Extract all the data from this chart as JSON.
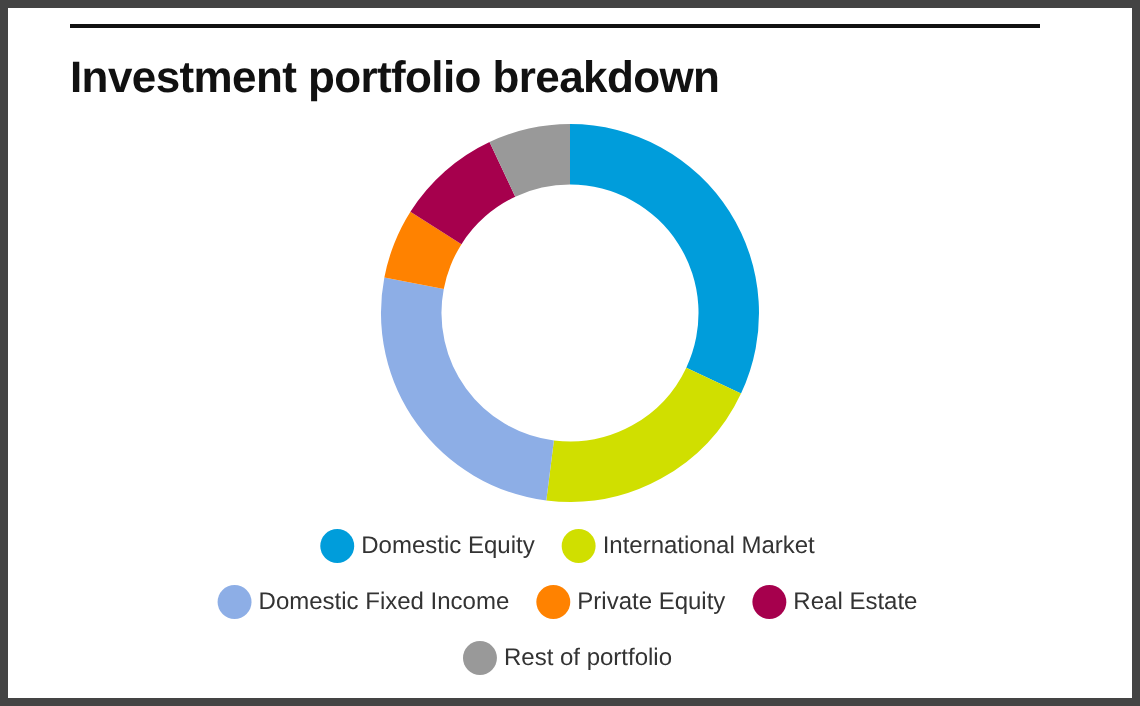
{
  "chart_data": {
    "type": "donut",
    "title": "Investment portfolio breakdown",
    "categories": [
      "Domestic Equity",
      "International Market",
      "Domestic Fixed Income",
      "Private Equity",
      "Real Estate",
      "Rest of portfolio"
    ],
    "values": [
      32,
      20,
      26,
      6,
      9,
      7
    ],
    "colors": [
      "#009ddb",
      "#d0df00",
      "#8daee6",
      "#ff8200",
      "#a6004d",
      "#999999"
    ],
    "legend": "bottom"
  }
}
